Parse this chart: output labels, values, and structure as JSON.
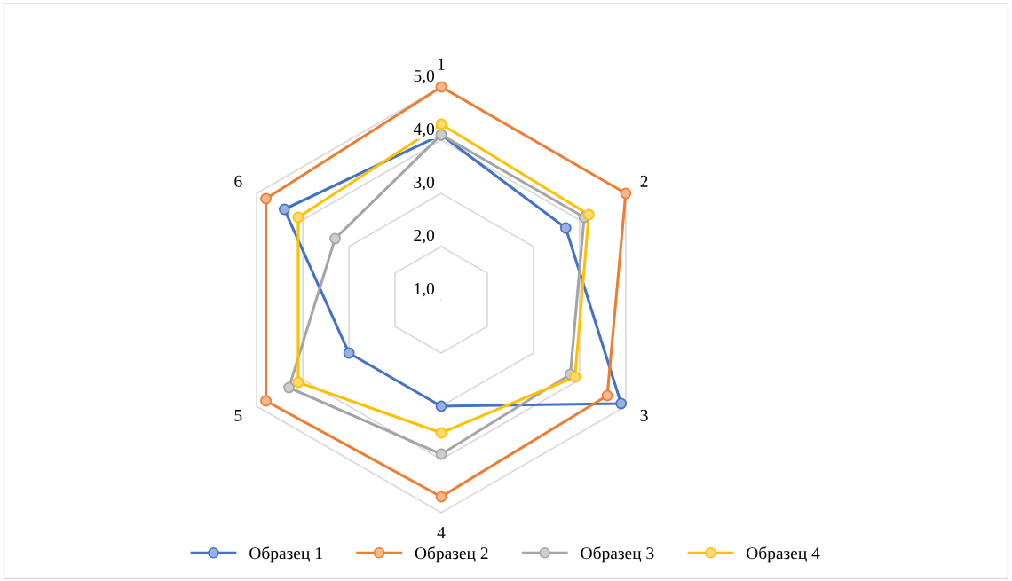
{
  "chart_data": {
    "type": "radar",
    "categories": [
      "1",
      "2",
      "3",
      "4",
      "5",
      "6"
    ],
    "series": [
      {
        "name": "Образец 1",
        "color": "#4472c4",
        "values": [
          4.1,
          3.7,
          4.9,
          3.0,
          3.0,
          4.4
        ]
      },
      {
        "name": "Образец 2",
        "color": "#ed7d31",
        "values": [
          5.0,
          5.0,
          4.6,
          4.7,
          4.8,
          4.8
        ]
      },
      {
        "name": "Образец 3",
        "color": "#a5a5a5",
        "values": [
          4.1,
          4.1,
          3.8,
          3.9,
          4.3,
          3.3
        ]
      },
      {
        "name": "Образец 4",
        "color": "#ffc000",
        "values": [
          4.3,
          4.2,
          3.9,
          3.5,
          4.1,
          4.1
        ]
      }
    ],
    "ylim": [
      1,
      5
    ],
    "yticks": [
      {
        "value": 1,
        "label": "1,0"
      },
      {
        "value": 2,
        "label": "2,0"
      },
      {
        "value": 3,
        "label": "3,0"
      },
      {
        "value": 4,
        "label": "4,0"
      },
      {
        "value": 5,
        "label": "5,0"
      }
    ],
    "grid": true,
    "legend": "bottom",
    "marker": "circle",
    "line_style": "solid"
  }
}
